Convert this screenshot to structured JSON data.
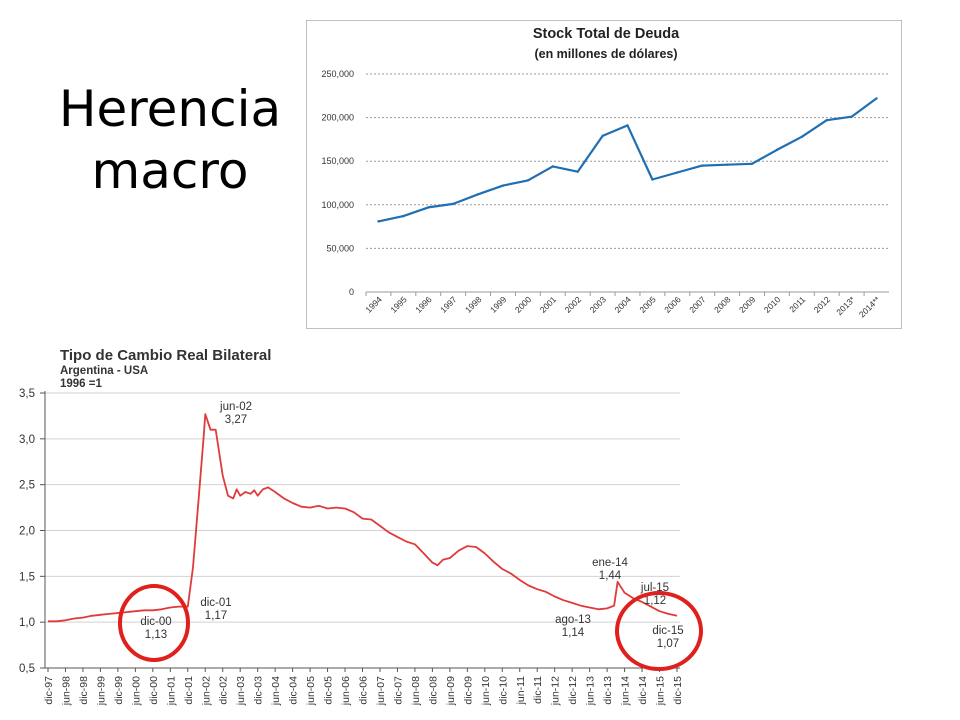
{
  "slide": {
    "title_line1": "Herencia",
    "title_line2": "macro"
  },
  "chart_data": [
    {
      "type": "line",
      "title": "Stock Total de Deuda",
      "subtitle": "(en millones de dólares)",
      "categories": [
        "1994",
        "1995",
        "1996",
        "1997",
        "1998",
        "1999",
        "2000",
        "2001",
        "2002",
        "2003",
        "2004",
        "2005",
        "2006",
        "2007",
        "2008",
        "2009",
        "2010",
        "2011",
        "2012",
        "2013*",
        "2014**"
      ],
      "values": [
        81000,
        87000,
        97000,
        101000,
        112000,
        122000,
        128000,
        144000,
        138000,
        179000,
        191000,
        129000,
        137000,
        145000,
        146000,
        147000,
        163000,
        178000,
        197000,
        201000,
        222000
      ],
      "ylim": [
        0,
        250000
      ],
      "yticks": [
        "0",
        "50,000",
        "100,000",
        "150,000",
        "200,000",
        "250,000"
      ],
      "grid": true,
      "color": "#1f6fb2"
    },
    {
      "type": "line",
      "title": "Tipo de Cambio Real Bilateral",
      "subtitle_lines": [
        "Argentina - USA",
        "1996 =1"
      ],
      "ylim": [
        0.5,
        3.5
      ],
      "yticks": [
        "0,5",
        "1,0",
        "1,5",
        "2,0",
        "2,5",
        "3,0",
        "3,5"
      ],
      "xticks": [
        "dic-97",
        "jun-98",
        "dic-98",
        "jun-99",
        "dic-99",
        "jun-00",
        "dic-00",
        "jun-01",
        "dic-01",
        "jun-02",
        "dic-02",
        "jun-03",
        "dic-03",
        "jun-04",
        "dic-04",
        "jun-05",
        "dic-05",
        "jun-06",
        "dic-06",
        "jun-07",
        "dic-07",
        "jun-08",
        "dic-08",
        "jun-09",
        "dic-09",
        "jun-10",
        "dic-10",
        "jun-11",
        "dic-11",
        "jun-12",
        "dic-12",
        "jun-13",
        "dic-13",
        "jun-14",
        "dic-14",
        "jun-15",
        "dic-15"
      ],
      "color": "#e03a3a",
      "series_points": [
        [
          0,
          1.01
        ],
        [
          0.5,
          1.01
        ],
        [
          1,
          1.02
        ],
        [
          1.5,
          1.04
        ],
        [
          2,
          1.05
        ],
        [
          2.5,
          1.07
        ],
        [
          3,
          1.08
        ],
        [
          3.5,
          1.09
        ],
        [
          4,
          1.1
        ],
        [
          4.5,
          1.11
        ],
        [
          5,
          1.12
        ],
        [
          5.5,
          1.13
        ],
        [
          6,
          1.13
        ],
        [
          6.5,
          1.14
        ],
        [
          7,
          1.16
        ],
        [
          7.5,
          1.17
        ],
        [
          8,
          1.17
        ],
        [
          8.3,
          1.6
        ],
        [
          8.6,
          2.3
        ],
        [
          8.9,
          3.0
        ],
        [
          9,
          3.27
        ],
        [
          9.3,
          3.1
        ],
        [
          9.6,
          3.1
        ],
        [
          9.8,
          2.85
        ],
        [
          10,
          2.6
        ],
        [
          10.3,
          2.38
        ],
        [
          10.6,
          2.35
        ],
        [
          10.8,
          2.45
        ],
        [
          11,
          2.38
        ],
        [
          11.3,
          2.42
        ],
        [
          11.6,
          2.4
        ],
        [
          11.8,
          2.44
        ],
        [
          12,
          2.38
        ],
        [
          12.3,
          2.45
        ],
        [
          12.6,
          2.47
        ],
        [
          13,
          2.42
        ],
        [
          13.5,
          2.35
        ],
        [
          14,
          2.3
        ],
        [
          14.5,
          2.26
        ],
        [
          15,
          2.25
        ],
        [
          15.5,
          2.27
        ],
        [
          16,
          2.24
        ],
        [
          16.5,
          2.25
        ],
        [
          17,
          2.24
        ],
        [
          17.5,
          2.2
        ],
        [
          18,
          2.13
        ],
        [
          18.5,
          2.12
        ],
        [
          19,
          2.05
        ],
        [
          19.5,
          1.98
        ],
        [
          20,
          1.93
        ],
        [
          20.5,
          1.88
        ],
        [
          21,
          1.85
        ],
        [
          21.5,
          1.75
        ],
        [
          22,
          1.65
        ],
        [
          22.3,
          1.62
        ],
        [
          22.6,
          1.68
        ],
        [
          23,
          1.7
        ],
        [
          23.5,
          1.78
        ],
        [
          24,
          1.83
        ],
        [
          24.5,
          1.82
        ],
        [
          25,
          1.75
        ],
        [
          25.5,
          1.66
        ],
        [
          26,
          1.58
        ],
        [
          26.5,
          1.53
        ],
        [
          27,
          1.46
        ],
        [
          27.5,
          1.4
        ],
        [
          28,
          1.36
        ],
        [
          28.5,
          1.33
        ],
        [
          29,
          1.28
        ],
        [
          29.5,
          1.24
        ],
        [
          30,
          1.21
        ],
        [
          30.5,
          1.18
        ],
        [
          31,
          1.16
        ],
        [
          31.5,
          1.14
        ],
        [
          32,
          1.15
        ],
        [
          32.4,
          1.18
        ],
        [
          32.6,
          1.44
        ],
        [
          32.8,
          1.38
        ],
        [
          33,
          1.32
        ],
        [
          33.5,
          1.26
        ],
        [
          34,
          1.22
        ],
        [
          34.5,
          1.17
        ],
        [
          35,
          1.12
        ],
        [
          35.5,
          1.09
        ],
        [
          36,
          1.07
        ]
      ],
      "annotations": [
        {
          "name": "jun-02",
          "line1": "jun-02",
          "line2": "3,27"
        },
        {
          "name": "dic-01",
          "line1": "dic-01",
          "line2": "1,17"
        },
        {
          "name": "dic-00",
          "line1": "dic-00",
          "line2": "1,13"
        },
        {
          "name": "ene-14",
          "line1": "ene-14",
          "line2": "1,44"
        },
        {
          "name": "ago-13",
          "line1": "ago-13",
          "line2": "1,14"
        },
        {
          "name": "jul-15",
          "line1": "jul-15",
          "line2": "1,12"
        },
        {
          "name": "dic-15",
          "line1": "dic-15",
          "line2": "1,07"
        }
      ],
      "highlight_color": "#e0201c"
    }
  ]
}
